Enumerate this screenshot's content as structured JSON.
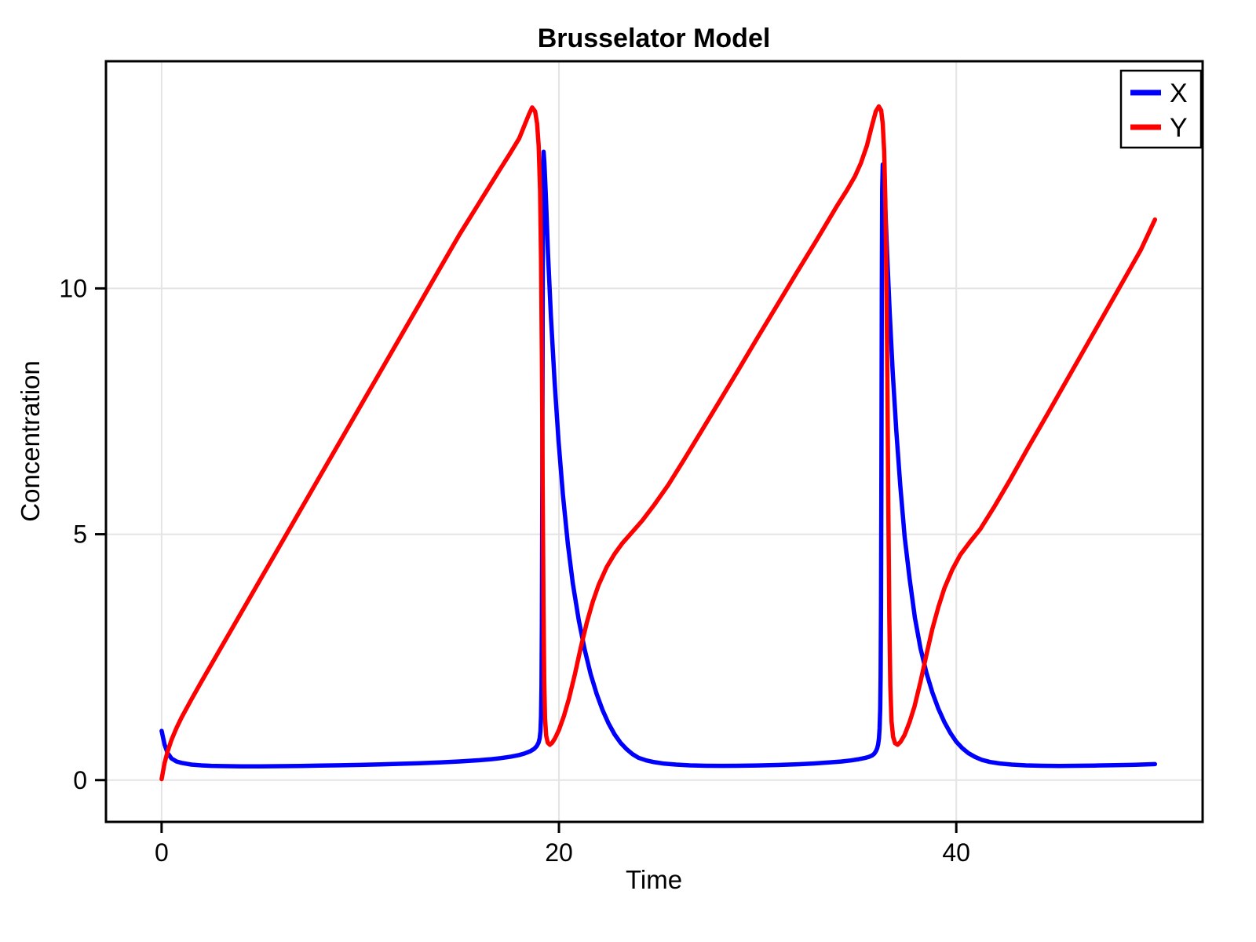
{
  "figure": {
    "background": "#ffffff"
  },
  "chart_data": {
    "type": "line",
    "title": "Brusselator Model",
    "xlabel": "Time",
    "ylabel": "Concentration",
    "xlim": [
      -2.8,
      52.4
    ],
    "ylim": [
      -0.85,
      14.62
    ],
    "grid": true,
    "grid_color": "#e4e4e4",
    "frame_color": "#000000",
    "legend": {
      "position": "top-right",
      "border_color": "#000000",
      "background": "#ffffff"
    },
    "xticks": {
      "values": [
        0,
        20,
        40
      ],
      "labels": [
        "0",
        "20",
        "40"
      ]
    },
    "yticks": {
      "values": [
        0,
        5,
        10
      ],
      "labels": [
        "0",
        "5",
        "10"
      ]
    },
    "series": [
      {
        "name": "X",
        "color": "#0000ff",
        "points": [
          [
            0,
            1.0
          ],
          [
            0.15,
            0.72
          ],
          [
            0.3,
            0.55
          ],
          [
            0.5,
            0.44
          ],
          [
            0.75,
            0.38
          ],
          [
            1,
            0.35
          ],
          [
            1.5,
            0.315
          ],
          [
            2,
            0.3
          ],
          [
            2.5,
            0.29
          ],
          [
            3,
            0.285
          ],
          [
            4,
            0.28
          ],
          [
            5,
            0.28
          ],
          [
            6,
            0.283
          ],
          [
            7,
            0.288
          ],
          [
            8,
            0.294
          ],
          [
            9,
            0.301
          ],
          [
            10,
            0.309
          ],
          [
            11,
            0.319
          ],
          [
            12,
            0.331
          ],
          [
            13,
            0.344
          ],
          [
            14,
            0.36
          ],
          [
            15,
            0.38
          ],
          [
            16,
            0.405
          ],
          [
            16.6,
            0.425
          ],
          [
            17.1,
            0.448
          ],
          [
            17.6,
            0.478
          ],
          [
            18,
            0.51
          ],
          [
            18.3,
            0.545
          ],
          [
            18.55,
            0.585
          ],
          [
            18.75,
            0.635
          ],
          [
            18.88,
            0.69
          ],
          [
            18.97,
            0.76
          ],
          [
            19.03,
            0.85
          ],
          [
            19.07,
            1.0
          ],
          [
            19.1,
            1.3
          ],
          [
            19.12,
            1.9
          ],
          [
            19.14,
            3.2
          ],
          [
            19.16,
            5.8
          ],
          [
            19.18,
            9.5
          ],
          [
            19.2,
            12.1
          ],
          [
            19.23,
            12.78
          ],
          [
            19.27,
            12.55
          ],
          [
            19.34,
            11.9
          ],
          [
            19.45,
            10.7
          ],
          [
            19.6,
            9.4
          ],
          [
            19.78,
            8.1
          ],
          [
            19.98,
            6.9
          ],
          [
            20.2,
            5.8
          ],
          [
            20.45,
            4.8
          ],
          [
            20.7,
            4.0
          ],
          [
            21,
            3.25
          ],
          [
            21.3,
            2.65
          ],
          [
            21.6,
            2.15
          ],
          [
            21.9,
            1.75
          ],
          [
            22.2,
            1.42
          ],
          [
            22.5,
            1.15
          ],
          [
            22.8,
            0.93
          ],
          [
            23.1,
            0.76
          ],
          [
            23.4,
            0.63
          ],
          [
            23.7,
            0.53
          ],
          [
            24,
            0.455
          ],
          [
            24.4,
            0.4
          ],
          [
            24.8,
            0.365
          ],
          [
            25.3,
            0.335
          ],
          [
            25.9,
            0.315
          ],
          [
            26.6,
            0.3
          ],
          [
            27.4,
            0.292
          ],
          [
            28.2,
            0.29
          ],
          [
            29,
            0.292
          ],
          [
            30,
            0.298
          ],
          [
            31,
            0.308
          ],
          [
            32,
            0.322
          ],
          [
            32.8,
            0.338
          ],
          [
            33.6,
            0.358
          ],
          [
            34.2,
            0.378
          ],
          [
            34.7,
            0.4
          ],
          [
            35.1,
            0.425
          ],
          [
            35.4,
            0.45
          ],
          [
            35.62,
            0.475
          ],
          [
            35.78,
            0.505
          ],
          [
            35.88,
            0.54
          ],
          [
            35.96,
            0.59
          ],
          [
            36.02,
            0.65
          ],
          [
            36.07,
            0.73
          ],
          [
            36.11,
            0.85
          ],
          [
            36.14,
            1.05
          ],
          [
            36.17,
            1.45
          ],
          [
            36.19,
            2.1
          ],
          [
            36.21,
            3.5
          ],
          [
            36.23,
            6.2
          ],
          [
            36.25,
            9.8
          ],
          [
            36.27,
            12.0
          ],
          [
            36.3,
            12.52
          ],
          [
            36.34,
            12.35
          ],
          [
            36.42,
            11.7
          ],
          [
            36.52,
            10.7
          ],
          [
            36.65,
            9.5
          ],
          [
            36.8,
            8.3
          ],
          [
            36.98,
            7.1
          ],
          [
            37.18,
            6.0
          ],
          [
            37.4,
            4.95
          ],
          [
            37.65,
            4.1
          ],
          [
            37.92,
            3.3
          ],
          [
            38.2,
            2.68
          ],
          [
            38.5,
            2.18
          ],
          [
            38.8,
            1.78
          ],
          [
            39.1,
            1.45
          ],
          [
            39.4,
            1.18
          ],
          [
            39.7,
            0.96
          ],
          [
            40,
            0.78
          ],
          [
            40.3,
            0.65
          ],
          [
            40.6,
            0.55
          ],
          [
            40.95,
            0.47
          ],
          [
            41.3,
            0.41
          ],
          [
            41.7,
            0.368
          ],
          [
            42.2,
            0.338
          ],
          [
            42.8,
            0.316
          ],
          [
            43.5,
            0.3
          ],
          [
            44.3,
            0.292
          ],
          [
            45.2,
            0.289
          ],
          [
            46.1,
            0.291
          ],
          [
            47,
            0.296
          ],
          [
            48,
            0.303
          ],
          [
            49,
            0.313
          ],
          [
            50,
            0.325
          ]
        ]
      },
      {
        "name": "Y",
        "color": "#ff0000",
        "points": [
          [
            0,
            0.02
          ],
          [
            0.15,
            0.35
          ],
          [
            0.3,
            0.58
          ],
          [
            0.5,
            0.82
          ],
          [
            0.75,
            1.06
          ],
          [
            1,
            1.27
          ],
          [
            1.5,
            1.64
          ],
          [
            2,
            2.0
          ],
          [
            2.5,
            2.35
          ],
          [
            3,
            2.7
          ],
          [
            4,
            3.4
          ],
          [
            5,
            4.1
          ],
          [
            6,
            4.8
          ],
          [
            7,
            5.5
          ],
          [
            8,
            6.2
          ],
          [
            9,
            6.9
          ],
          [
            10,
            7.6
          ],
          [
            11,
            8.3
          ],
          [
            12,
            9.0
          ],
          [
            13,
            9.7
          ],
          [
            14,
            10.4
          ],
          [
            15,
            11.1
          ],
          [
            16,
            11.75
          ],
          [
            17,
            12.4
          ],
          [
            17.5,
            12.72
          ],
          [
            18,
            13.05
          ],
          [
            18.3,
            13.35
          ],
          [
            18.5,
            13.55
          ],
          [
            18.65,
            13.68
          ],
          [
            18.8,
            13.6
          ],
          [
            18.9,
            13.35
          ],
          [
            18.98,
            12.9
          ],
          [
            19.05,
            12.0
          ],
          [
            19.1,
            10.6
          ],
          [
            19.14,
            8.6
          ],
          [
            19.18,
            6.0
          ],
          [
            19.22,
            3.6
          ],
          [
            19.26,
            2.0
          ],
          [
            19.3,
            1.25
          ],
          [
            19.36,
            0.9
          ],
          [
            19.44,
            0.76
          ],
          [
            19.54,
            0.72
          ],
          [
            19.66,
            0.76
          ],
          [
            19.8,
            0.85
          ],
          [
            20,
            1.02
          ],
          [
            20.25,
            1.3
          ],
          [
            20.5,
            1.65
          ],
          [
            20.8,
            2.15
          ],
          [
            21.1,
            2.7
          ],
          [
            21.4,
            3.2
          ],
          [
            21.7,
            3.62
          ],
          [
            22,
            3.97
          ],
          [
            22.4,
            4.33
          ],
          [
            22.8,
            4.6
          ],
          [
            23.2,
            4.82
          ],
          [
            23.7,
            5.05
          ],
          [
            24.2,
            5.28
          ],
          [
            24.8,
            5.6
          ],
          [
            25.5,
            6.0
          ],
          [
            26.3,
            6.52
          ],
          [
            27.1,
            7.05
          ],
          [
            28,
            7.65
          ],
          [
            29,
            8.32
          ],
          [
            30,
            9.0
          ],
          [
            31,
            9.67
          ],
          [
            32,
            10.34
          ],
          [
            33,
            11.0
          ],
          [
            34,
            11.68
          ],
          [
            34.5,
            12.0
          ],
          [
            34.9,
            12.28
          ],
          [
            35.2,
            12.55
          ],
          [
            35.5,
            12.9
          ],
          [
            35.75,
            13.3
          ],
          [
            35.95,
            13.6
          ],
          [
            36.1,
            13.7
          ],
          [
            36.22,
            13.62
          ],
          [
            36.3,
            13.35
          ],
          [
            36.37,
            12.8
          ],
          [
            36.43,
            11.8
          ],
          [
            36.48,
            10.3
          ],
          [
            36.53,
            8.2
          ],
          [
            36.58,
            5.6
          ],
          [
            36.63,
            3.3
          ],
          [
            36.68,
            1.9
          ],
          [
            36.74,
            1.2
          ],
          [
            36.82,
            0.88
          ],
          [
            36.92,
            0.75
          ],
          [
            37.05,
            0.72
          ],
          [
            37.2,
            0.78
          ],
          [
            37.4,
            0.92
          ],
          [
            37.65,
            1.18
          ],
          [
            37.9,
            1.5
          ],
          [
            38.2,
            2.0
          ],
          [
            38.5,
            2.55
          ],
          [
            38.8,
            3.08
          ],
          [
            39.1,
            3.52
          ],
          [
            39.4,
            3.9
          ],
          [
            39.8,
            4.28
          ],
          [
            40.2,
            4.58
          ],
          [
            40.7,
            4.85
          ],
          [
            41.2,
            5.1
          ],
          [
            41.9,
            5.55
          ],
          [
            42.7,
            6.1
          ],
          [
            43.6,
            6.75
          ],
          [
            44.6,
            7.45
          ],
          [
            45.6,
            8.16
          ],
          [
            46.6,
            8.87
          ],
          [
            47.6,
            9.58
          ],
          [
            48.6,
            10.29
          ],
          [
            49.3,
            10.79
          ],
          [
            50,
            11.4
          ]
        ]
      }
    ]
  }
}
